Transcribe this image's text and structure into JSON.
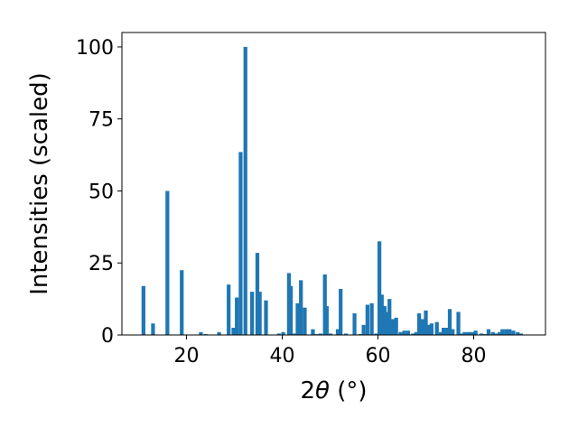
{
  "chart_data": {
    "type": "bar",
    "xlabel_prefix": "2",
    "xlabel_symbol": "θ",
    "xlabel_unit": " (°)",
    "ylabel": "Intensities (scaled)",
    "xlim": [
      6.5,
      95
    ],
    "ylim": [
      0,
      105
    ],
    "xticks": [
      20,
      40,
      60,
      80
    ],
    "yticks": [
      0,
      25,
      50,
      75,
      100
    ],
    "grid": false,
    "bar_color": "#1f77b4",
    "bar_width": 0.8,
    "x": [
      11.0,
      13.0,
      16.0,
      19.0,
      23.0,
      24.0,
      26.8,
      28.8,
      29.8,
      30.5,
      31.3,
      32.3,
      33.7,
      34.8,
      35.3,
      36.6,
      39.3,
      40.2,
      41.4,
      41.8,
      42.6,
      43.2,
      43.9,
      44.7,
      46.4,
      47.2,
      48.0,
      48.9,
      49.3,
      50.1,
      51.6,
      52.2,
      53.3,
      55.1,
      56.3,
      57.0,
      57.8,
      58.7,
      59.6,
      60.3,
      60.8,
      61.4,
      62.0,
      62.4,
      63.1,
      63.8,
      64.7,
      65.5,
      66.3,
      67.3,
      68.0,
      68.6,
      69.3,
      70.0,
      70.6,
      71.2,
      72.3,
      73.1,
      73.7,
      74.3,
      75.0,
      75.6,
      76.8,
      77.4,
      78.1,
      78.9,
      79.6,
      80.4,
      81.6,
      82.4,
      83.1,
      84.0,
      84.7,
      85.4,
      86.0,
      86.8,
      87.5,
      88.3,
      89.2,
      89.9
    ],
    "values": [
      17,
      4,
      50,
      22.5,
      1,
      0.3,
      1,
      17.5,
      2.5,
      13,
      63.5,
      100,
      15,
      28.5,
      15,
      12,
      0.5,
      1,
      21.5,
      17,
      0.5,
      11,
      19,
      9.5,
      2,
      0.3,
      0.5,
      21,
      10,
      0.5,
      2,
      16,
      0.5,
      7.5,
      0.3,
      3.5,
      10.5,
      11,
      0.5,
      32.5,
      14,
      10,
      8,
      12.5,
      5.5,
      6,
      1,
      1.5,
      1.5,
      0.5,
      1,
      7.5,
      5.5,
      8.5,
      3.5,
      4,
      4.5,
      1,
      2.5,
      2.5,
      9,
      2,
      8,
      0.5,
      1,
      1,
      1,
      1.5,
      0.5,
      0.3,
      2,
      1,
      0.5,
      1,
      2,
      2,
      2,
      1.5,
      1,
      0.5
    ]
  }
}
